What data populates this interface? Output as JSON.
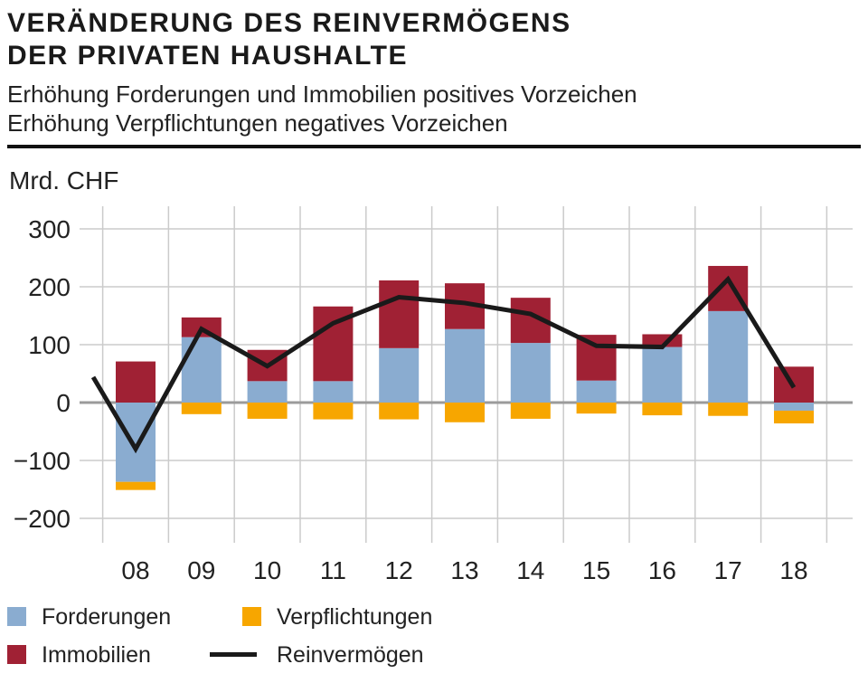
{
  "header": {
    "title_line1": "VERÄNDERUNG DES REINVERMÖGENS",
    "title_line2": "DER PRIVATEN HAUSHALTE",
    "subtitle_line1": "Erhöhung Forderungen und Immobilien positives Vorzeichen",
    "subtitle_line2": "Erhöhung Verpflichtungen negatives Vorzeichen"
  },
  "chart_data": {
    "type": "bar",
    "subtype": "stacked-bars-with-line-overlay",
    "title": "Veränderung des Reinvermögens der privaten Haushalte",
    "unit_label": "Mrd. CHF",
    "categories": [
      "08",
      "09",
      "10",
      "11",
      "12",
      "13",
      "14",
      "15",
      "16",
      "17",
      "18"
    ],
    "series": [
      {
        "name": "Forderungen",
        "chart": "bar",
        "color": "#8AACD0",
        "values": [
          -137,
          113,
          37,
          37,
          94,
          127,
          103,
          38,
          96,
          158,
          -14
        ]
      },
      {
        "name": "Immobilien",
        "chart": "bar",
        "color": "#A02134",
        "values": [
          71,
          34,
          54,
          129,
          117,
          79,
          78,
          79,
          22,
          78,
          62
        ]
      },
      {
        "name": "Verpflichtungen",
        "chart": "bar",
        "color": "#F7A600",
        "values": [
          -14,
          -20,
          -28,
          -29,
          -29,
          -34,
          -28,
          -19,
          -22,
          -23,
          -22
        ]
      },
      {
        "name": "Reinvermögen",
        "chart": "line",
        "color": "#1A1A1A",
        "values": [
          -80,
          127,
          63,
          137,
          182,
          172,
          153,
          98,
          96,
          213,
          26
        ]
      }
    ],
    "line_lead_in": {
      "value": 44,
      "note": "visible partial line segment entering plot left of first category"
    },
    "stacking": "positive segments stack upward from zero, negative segments stack downward from zero",
    "ylabel": "Mrd. CHF",
    "ylim": [
      -200,
      300
    ],
    "yticks": [
      300,
      200,
      100,
      0,
      -100,
      -200
    ],
    "grid": true,
    "grid_color": "#CBCBCB",
    "zero_line_color": "#9B9B9B",
    "legend_position": "bottom"
  },
  "legend": {
    "item1": "Forderungen",
    "item2": "Verpflichtungen",
    "item3": "Immobilien",
    "item4": "Reinvermögen"
  }
}
